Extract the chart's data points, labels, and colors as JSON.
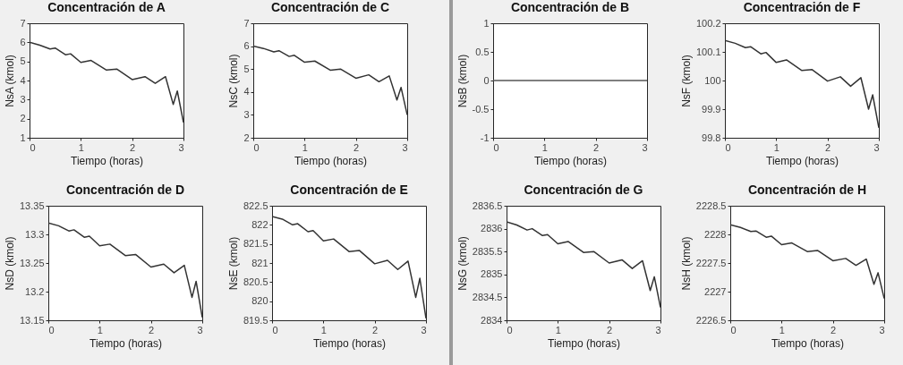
{
  "chart_data": [
    {
      "type": "line",
      "title": "Concentración de A",
      "xlabel": "Tiempo (horas)",
      "ylabel": "NsA (kmol)",
      "x": [
        0,
        0.2,
        0.4,
        0.5,
        0.7,
        0.8,
        1.0,
        1.2,
        1.5,
        1.7,
        2.0,
        2.25,
        2.45,
        2.65,
        2.8,
        2.88,
        3.0
      ],
      "xlim": [
        0,
        3
      ],
      "xticks": [
        0,
        1,
        2,
        3
      ],
      "ylim": [
        1,
        7
      ],
      "yticks": [
        1,
        2,
        3,
        4,
        5,
        6,
        7
      ],
      "grid": false,
      "series": [
        {
          "color": "#333333",
          "values": [
            6,
            5.85,
            5.65,
            5.7,
            5.35,
            5.4,
            4.95,
            5.05,
            4.55,
            4.6,
            4.05,
            4.2,
            3.85,
            4.2,
            2.75,
            3.45,
            1.8
          ]
        }
      ]
    },
    {
      "type": "line",
      "title": "Concentración de C",
      "xlabel": "Tiempo (horas)",
      "ylabel": "NsC (kmol)",
      "x": [
        0,
        0.2,
        0.4,
        0.5,
        0.7,
        0.8,
        1.0,
        1.2,
        1.5,
        1.7,
        2.0,
        2.25,
        2.45,
        2.65,
        2.8,
        2.88,
        3.0
      ],
      "xlim": [
        0,
        3
      ],
      "xticks": [
        0,
        1,
        2,
        3
      ],
      "ylim": [
        2,
        7
      ],
      "yticks": [
        2,
        3,
        4,
        5,
        6,
        7
      ],
      "grid": false,
      "series": [
        {
          "color": "#333333",
          "values": [
            6,
            5.9,
            5.75,
            5.8,
            5.55,
            5.6,
            5.3,
            5.35,
            4.95,
            5.0,
            4.6,
            4.75,
            4.45,
            4.7,
            3.65,
            4.2,
            3.0
          ]
        }
      ]
    },
    {
      "type": "line",
      "title": "Concentración de D",
      "xlabel": "Tiempo (horas)",
      "ylabel": "NsD (kmol)",
      "x": [
        0,
        0.2,
        0.4,
        0.5,
        0.7,
        0.8,
        1.0,
        1.2,
        1.5,
        1.7,
        2.0,
        2.25,
        2.45,
        2.65,
        2.8,
        2.88,
        3.0
      ],
      "xlim": [
        0,
        3
      ],
      "xticks": [
        0,
        1,
        2,
        3
      ],
      "ylim": [
        13.15,
        13.35
      ],
      "yticks": [
        13.15,
        13.2,
        13.25,
        13.3,
        13.35
      ],
      "grid": false,
      "series": [
        {
          "color": "#333333",
          "values": [
            13.32,
            13.315,
            13.306,
            13.308,
            13.295,
            13.297,
            13.28,
            13.283,
            13.263,
            13.265,
            13.243,
            13.248,
            13.233,
            13.246,
            13.19,
            13.218,
            13.155
          ]
        }
      ]
    },
    {
      "type": "line",
      "title": "Concentración de E",
      "xlabel": "Tiempo (horas)",
      "ylabel": "NsE (kmol)",
      "x": [
        0,
        0.2,
        0.4,
        0.5,
        0.7,
        0.8,
        1.0,
        1.2,
        1.5,
        1.7,
        2.0,
        2.25,
        2.45,
        2.65,
        2.8,
        2.88,
        3.0
      ],
      "xlim": [
        0,
        3
      ],
      "xticks": [
        0,
        1,
        2,
        3
      ],
      "ylim": [
        819.5,
        822.5
      ],
      "yticks": [
        819.5,
        820,
        820.5,
        821,
        821.5,
        822,
        822.5
      ],
      "grid": false,
      "series": [
        {
          "color": "#333333",
          "values": [
            822.22,
            822.15,
            822.0,
            822.03,
            821.82,
            821.85,
            821.58,
            821.63,
            821.3,
            821.33,
            820.98,
            821.07,
            820.83,
            821.05,
            820.1,
            820.6,
            819.55
          ]
        }
      ]
    },
    {
      "type": "line",
      "title": "Concentración de B",
      "xlabel": "Tiempo (horas)",
      "ylabel": "NsB (kmol)",
      "x": [
        0,
        3
      ],
      "xlim": [
        0,
        3
      ],
      "xticks": [
        0,
        1,
        2,
        3
      ],
      "ylim": [
        -1,
        1
      ],
      "yticks": [
        -1,
        -0.5,
        0,
        0.5,
        1
      ],
      "grid": false,
      "series": [
        {
          "color": "#555555",
          "values": [
            0,
            0
          ]
        }
      ]
    },
    {
      "type": "line",
      "title": "Concentración de F",
      "xlabel": "Tiempo (horas)",
      "ylabel": "NsF (kmol)",
      "x": [
        0,
        0.2,
        0.4,
        0.5,
        0.7,
        0.8,
        1.0,
        1.2,
        1.5,
        1.7,
        2.0,
        2.25,
        2.45,
        2.65,
        2.8,
        2.88,
        3.0
      ],
      "xlim": [
        0,
        3
      ],
      "xticks": [
        0,
        1,
        2,
        3
      ],
      "ylim": [
        99.8,
        100.2
      ],
      "yticks": [
        99.8,
        99.9,
        100,
        100.1,
        100.2
      ],
      "grid": false,
      "series": [
        {
          "color": "#333333",
          "values": [
            100.14,
            100.13,
            100.115,
            100.118,
            100.093,
            100.098,
            100.063,
            100.072,
            100.035,
            100.038,
            99.998,
            100.013,
            99.98,
            100.01,
            99.9,
            99.95,
            99.835
          ]
        }
      ]
    },
    {
      "type": "line",
      "title": "Concentración de G",
      "xlabel": "Tiempo (horas)",
      "ylabel": "NsG (kmol)",
      "x": [
        0,
        0.2,
        0.4,
        0.5,
        0.7,
        0.8,
        1.0,
        1.2,
        1.5,
        1.7,
        2.0,
        2.25,
        2.45,
        2.65,
        2.8,
        2.88,
        3.0
      ],
      "xlim": [
        0,
        3
      ],
      "xticks": [
        0,
        1,
        2,
        3
      ],
      "ylim": [
        2834,
        2836.5
      ],
      "yticks": [
        2834,
        2834.5,
        2835,
        2835.5,
        2836,
        2836.5
      ],
      "grid": false,
      "series": [
        {
          "color": "#333333",
          "values": [
            2836.15,
            2836.08,
            2835.97,
            2836.0,
            2835.85,
            2835.87,
            2835.67,
            2835.72,
            2835.48,
            2835.5,
            2835.25,
            2835.32,
            2835.13,
            2835.3,
            2834.65,
            2834.95,
            2834.28
          ]
        }
      ]
    },
    {
      "type": "line",
      "title": "Concentración de H",
      "xlabel": "Tiempo (horas)",
      "ylabel": "NsH (kmol)",
      "x": [
        0,
        0.2,
        0.4,
        0.5,
        0.7,
        0.8,
        1.0,
        1.2,
        1.5,
        1.7,
        2.0,
        2.25,
        2.45,
        2.65,
        2.8,
        2.88,
        3.0
      ],
      "xlim": [
        0,
        3
      ],
      "xticks": [
        0,
        1,
        2,
        3
      ],
      "ylim": [
        2226.5,
        2228.5
      ],
      "yticks": [
        2226.5,
        2227,
        2227.5,
        2228,
        2228.5
      ],
      "grid": false,
      "series": [
        {
          "color": "#333333",
          "values": [
            2228.17,
            2228.12,
            2228.05,
            2228.06,
            2227.95,
            2227.97,
            2227.82,
            2227.85,
            2227.7,
            2227.72,
            2227.54,
            2227.58,
            2227.46,
            2227.57,
            2227.13,
            2227.33,
            2226.88
          ]
        }
      ]
    }
  ]
}
